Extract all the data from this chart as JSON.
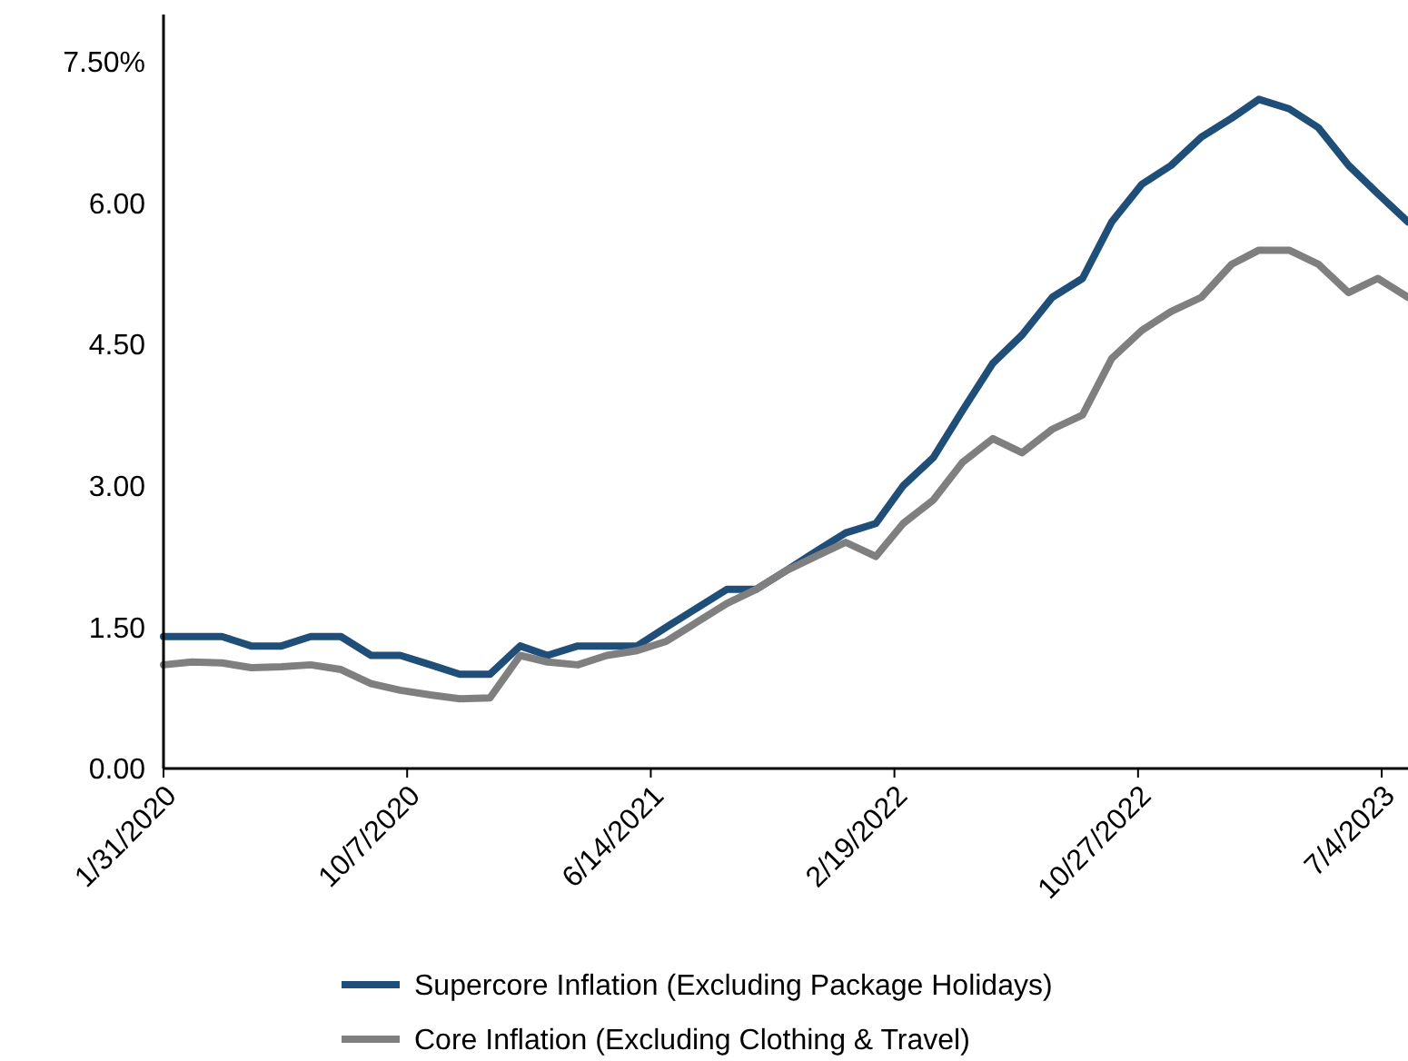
{
  "chart_data": {
    "type": "line",
    "x": [
      "2020-01-31",
      "2020-02-29",
      "2020-03-31",
      "2020-04-30",
      "2020-05-31",
      "2020-06-30",
      "2020-07-31",
      "2020-08-31",
      "2020-09-30",
      "2020-10-31",
      "2020-11-30",
      "2020-12-31",
      "2021-01-31",
      "2021-02-28",
      "2021-03-31",
      "2021-04-30",
      "2021-05-31",
      "2021-06-30",
      "2021-07-31",
      "2021-08-31",
      "2021-09-30",
      "2021-10-31",
      "2021-11-30",
      "2021-12-31",
      "2022-01-31",
      "2022-02-28",
      "2022-03-31",
      "2022-04-30",
      "2022-05-31",
      "2022-06-30",
      "2022-07-31",
      "2022-08-31",
      "2022-09-30",
      "2022-10-31",
      "2022-11-30",
      "2022-12-31",
      "2023-01-31",
      "2023-02-28",
      "2023-03-31",
      "2023-04-30",
      "2023-05-31",
      "2023-06-30",
      "2023-07-31"
    ],
    "series": [
      {
        "name": "Supercore Inflation (Excluding Package Holidays)",
        "color": "#1f4e79",
        "values": [
          1.4,
          1.4,
          1.4,
          1.3,
          1.3,
          1.4,
          1.4,
          1.2,
          1.2,
          1.1,
          1.0,
          1.0,
          1.3,
          1.2,
          1.3,
          1.3,
          1.3,
          1.5,
          1.7,
          1.9,
          1.9,
          2.1,
          2.3,
          2.5,
          2.6,
          3.0,
          3.3,
          3.8,
          4.3,
          4.6,
          5.0,
          5.2,
          5.8,
          6.2,
          6.4,
          6.7,
          6.9,
          7.1,
          7.0,
          6.8,
          6.4,
          6.1,
          5.8
        ]
      },
      {
        "name": "Core Inflation (Excluding Clothing & Travel)",
        "color": "#7f7f7f",
        "values": [
          1.1,
          1.13,
          1.12,
          1.07,
          1.08,
          1.1,
          1.05,
          0.9,
          0.83,
          0.78,
          0.74,
          0.75,
          1.2,
          1.13,
          1.1,
          1.2,
          1.25,
          1.35,
          1.55,
          1.75,
          1.9,
          2.1,
          2.25,
          2.4,
          2.25,
          2.6,
          2.85,
          3.25,
          3.5,
          3.35,
          3.6,
          3.75,
          4.35,
          4.65,
          4.85,
          5.0,
          5.35,
          5.5,
          5.5,
          5.35,
          5.05,
          5.2,
          5.0
        ]
      }
    ],
    "xlim": [
      "2020-01-31",
      "2023-07-31"
    ],
    "xticks": [
      {
        "value": "2020-01-31",
        "label": "1/31/2020"
      },
      {
        "value": "2020-10-07",
        "label": "10/7/2020"
      },
      {
        "value": "2021-06-14",
        "label": "6/14/2021"
      },
      {
        "value": "2022-02-19",
        "label": "2/19/2022"
      },
      {
        "value": "2022-10-27",
        "label": "10/27/2022"
      },
      {
        "value": "2023-07-04",
        "label": "7/4/2023"
      }
    ],
    "ylim": [
      0,
      8
    ],
    "yticks": [
      {
        "value": 0,
        "label": "0.00"
      },
      {
        "value": 1.5,
        "label": "1.50"
      },
      {
        "value": 3,
        "label": "3.00"
      },
      {
        "value": 4.5,
        "label": "4.50"
      },
      {
        "value": 6,
        "label": "6.00"
      },
      {
        "value": 7.5,
        "label": "7.50%"
      }
    ],
    "grid": false,
    "legend": "bottom",
    "marker": "none",
    "line_style": "solid"
  }
}
